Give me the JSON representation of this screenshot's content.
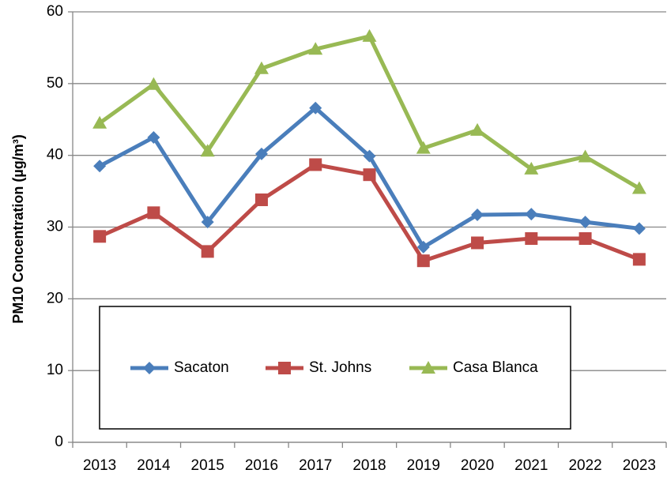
{
  "chart_data": {
    "type": "line",
    "ylabel": "PM10 Concentration (µg/m³)",
    "categories": [
      "2013",
      "2014",
      "2015",
      "2016",
      "2017",
      "2018",
      "2019",
      "2020",
      "2021",
      "2022",
      "2023"
    ],
    "series": [
      {
        "name": "Sacaton",
        "color": "#4a7ebb",
        "marker": "diamond",
        "values": [
          38.5,
          42.5,
          30.7,
          40.2,
          46.6,
          39.9,
          27.2,
          31.7,
          31.8,
          30.7,
          29.8
        ]
      },
      {
        "name": "St. Johns",
        "color": "#be4b48",
        "marker": "square",
        "values": [
          28.7,
          32.0,
          26.6,
          33.8,
          38.7,
          37.3,
          25.3,
          27.8,
          28.4,
          28.4,
          25.5
        ]
      },
      {
        "name": "Casa Blanca",
        "color": "#98b954",
        "marker": "triangle",
        "values": [
          44.5,
          49.9,
          40.6,
          52.1,
          54.8,
          56.6,
          41.0,
          43.5,
          38.1,
          39.8,
          35.4
        ]
      }
    ],
    "ylim": [
      0,
      60
    ],
    "yticks": [
      0,
      10,
      20,
      30,
      40,
      50,
      60
    ],
    "grid": true,
    "legend": "inside"
  }
}
